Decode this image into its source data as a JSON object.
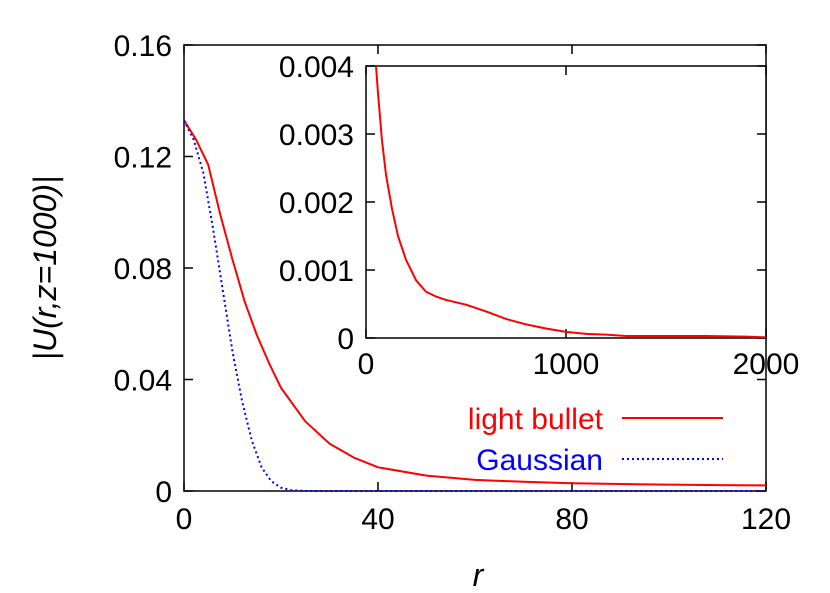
{
  "chart_data": [
    {
      "type": "line",
      "xlabel": "r",
      "ylabel": "|U(r,z=1000)|",
      "xlim": [
        0,
        120
      ],
      "ylim": [
        0,
        0.16
      ],
      "xticks": [
        0,
        40,
        80,
        120
      ],
      "xtick_labels": [
        "0",
        "40",
        "80",
        "120"
      ],
      "yticks": [
        0,
        0.04,
        0.08,
        0.12,
        0.16
      ],
      "ytick_labels": [
        "0",
        "0.04",
        "0.08",
        "0.12",
        "0.16"
      ],
      "grid": false,
      "legend_position": "lower-right",
      "series": [
        {
          "name": "light bullet",
          "color": "#ff0000",
          "style": "solid",
          "x": [
            0,
            2.5,
            5,
            7.5,
            10,
            12.5,
            15,
            17.5,
            20,
            25,
            30,
            35,
            40,
            50,
            60,
            70,
            80,
            90,
            100,
            110,
            120
          ],
          "y": [
            0.133,
            0.126,
            0.117,
            0.099,
            0.083,
            0.068,
            0.056,
            0.046,
            0.037,
            0.025,
            0.017,
            0.012,
            0.0085,
            0.0055,
            0.004,
            0.0033,
            0.0028,
            0.0025,
            0.0023,
            0.0021,
            0.002
          ]
        },
        {
          "name": "Gaussian",
          "color": "#0000ff",
          "style": "dotted",
          "x": [
            0,
            2,
            4,
            6,
            8,
            10,
            12,
            14,
            16,
            18,
            20,
            22,
            25,
            30,
            40,
            60,
            80,
            100,
            120
          ],
          "y": [
            0.133,
            0.126,
            0.114,
            0.094,
            0.072,
            0.05,
            0.032,
            0.018,
            0.0085,
            0.0035,
            0.0012,
            0.0003,
            3e-05,
            0,
            0,
            0,
            0,
            0,
            0
          ]
        }
      ]
    },
    {
      "type": "line",
      "role": "inset",
      "xlim": [
        0,
        2000
      ],
      "ylim": [
        0,
        0.004
      ],
      "xticks": [
        0,
        1000,
        2000
      ],
      "xtick_labels": [
        "0",
        "1000",
        "2000"
      ],
      "yticks": [
        0,
        0.001,
        0.002,
        0.003,
        0.004
      ],
      "ytick_labels": [
        "0",
        "0.001",
        "0.002",
        "0.003",
        "0.004"
      ],
      "grid": false,
      "series": [
        {
          "color": "#ff0000",
          "style": "solid",
          "x": [
            50,
            60,
            80,
            100,
            130,
            160,
            200,
            250,
            300,
            350,
            400,
            500,
            600,
            700,
            800,
            900,
            1000,
            1100,
            1200,
            1300,
            1500,
            1700,
            1900,
            2000
          ],
          "y": [
            0.004,
            0.0036,
            0.0029,
            0.0024,
            0.0019,
            0.0015,
            0.00115,
            0.00085,
            0.00068,
            0.00061,
            0.00056,
            0.00049,
            0.00039,
            0.00028,
            0.0002,
            0.00014,
            9e-05,
            6e-05,
            5e-05,
            3e-05,
            3e-05,
            3e-05,
            2e-05,
            1e-05
          ]
        }
      ]
    }
  ]
}
